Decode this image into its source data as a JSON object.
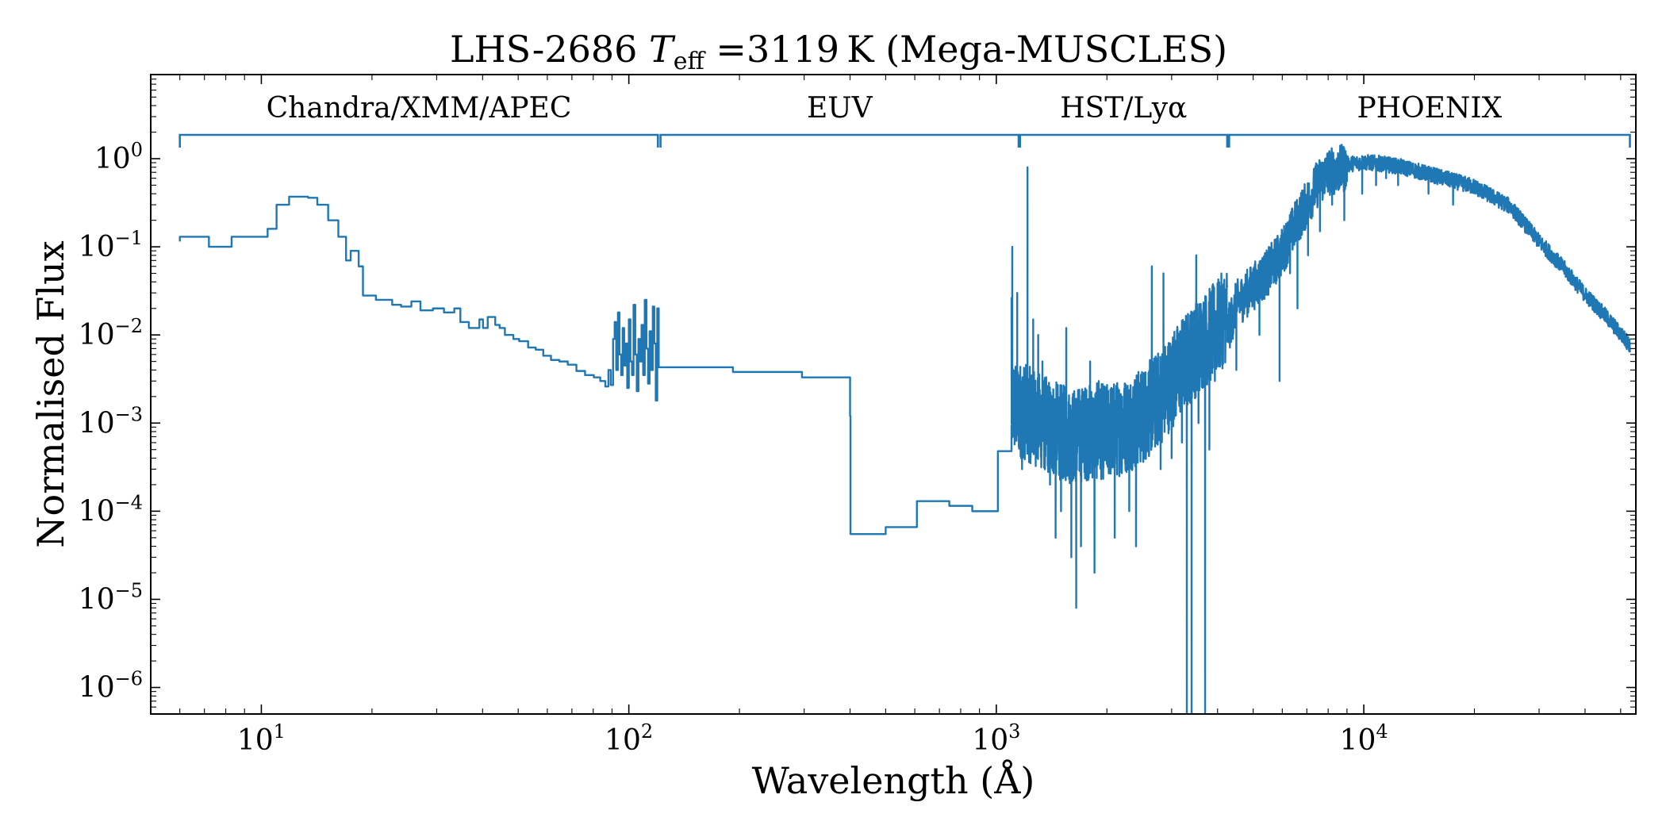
{
  "chart_data": {
    "type": "line",
    "title": {
      "prefix": "LHS-2686 ",
      "t_symbol": "T",
      "t_subscript": "eff",
      "suffix": " =3119 K (Mega-MUSCLES)"
    },
    "xlabel": "Wavelength (Å)",
    "ylabel": "Normalised Flux",
    "x_scale": "log",
    "y_scale": "log",
    "xlim": [
      5,
      55000
    ],
    "ylim": [
      5e-07,
      9
    ],
    "x_major_ticks": [
      {
        "value": 10,
        "base": "10",
        "exp": "1"
      },
      {
        "value": 100,
        "base": "10",
        "exp": "2"
      },
      {
        "value": 1000,
        "base": "10",
        "exp": "3"
      },
      {
        "value": 10000,
        "base": "10",
        "exp": "4"
      }
    ],
    "y_major_ticks": [
      {
        "value": 1,
        "base": "10",
        "exp": "0"
      },
      {
        "value": 0.1,
        "base": "10",
        "exp": "−1"
      },
      {
        "value": 0.01,
        "base": "10",
        "exp": "−2"
      },
      {
        "value": 0.001,
        "base": "10",
        "exp": "−3"
      },
      {
        "value": 0.0001,
        "base": "10",
        "exp": "−4"
      },
      {
        "value": 1e-05,
        "base": "10",
        "exp": "−5"
      },
      {
        "value": 1e-06,
        "base": "10",
        "exp": "−6"
      }
    ],
    "grid": false,
    "line_color": "#1f77b4",
    "regions": [
      {
        "label": "Chandra/XMM/APEC",
        "x_start": 6,
        "x_end": 120
      },
      {
        "label": "EUV",
        "x_start": 122,
        "x_end": 1150
      },
      {
        "label": "HST/Lyα",
        "x_start": 1160,
        "x_end": 4250
      },
      {
        "label": "PHOENIX",
        "x_start": 4300,
        "x_end": 53000
      }
    ],
    "series": [
      {
        "steps_xray": [
          [
            6,
            0.115
          ],
          [
            6,
            0.13
          ],
          [
            7.2,
            0.13
          ],
          [
            7.2,
            0.1
          ],
          [
            8.3,
            0.1
          ],
          [
            8.3,
            0.13
          ],
          [
            10.4,
            0.13
          ],
          [
            10.4,
            0.16
          ],
          [
            11.0,
            0.16
          ],
          [
            11.0,
            0.3
          ],
          [
            11.9,
            0.3
          ],
          [
            11.9,
            0.37
          ],
          [
            13.4,
            0.37
          ],
          [
            13.4,
            0.36
          ],
          [
            14.2,
            0.36
          ],
          [
            14.2,
            0.3
          ],
          [
            15.2,
            0.3
          ],
          [
            15.2,
            0.2
          ],
          [
            16.2,
            0.2
          ],
          [
            16.2,
            0.13
          ],
          [
            17.0,
            0.13
          ],
          [
            17.0,
            0.07
          ],
          [
            17.5,
            0.07
          ],
          [
            17.5,
            0.09
          ],
          [
            18.4,
            0.09
          ],
          [
            18.4,
            0.06
          ],
          [
            18.9,
            0.06
          ],
          [
            18.9,
            0.028
          ],
          [
            20.5,
            0.028
          ],
          [
            20.5,
            0.025
          ],
          [
            22.7,
            0.025
          ],
          [
            22.7,
            0.022
          ],
          [
            24.0,
            0.022
          ],
          [
            24.0,
            0.021
          ],
          [
            25.6,
            0.021
          ],
          [
            25.6,
            0.024
          ],
          [
            27.1,
            0.024
          ],
          [
            27.1,
            0.019
          ],
          [
            29.3,
            0.019
          ],
          [
            29.3,
            0.02
          ],
          [
            31.4,
            0.02
          ],
          [
            31.4,
            0.018
          ],
          [
            33.5,
            0.018
          ],
          [
            33.5,
            0.02
          ],
          [
            34.8,
            0.02
          ],
          [
            34.8,
            0.014
          ],
          [
            36.7,
            0.014
          ],
          [
            36.7,
            0.012
          ],
          [
            39.2,
            0.012
          ],
          [
            39.2,
            0.015
          ],
          [
            40.1,
            0.015
          ],
          [
            40.1,
            0.012
          ],
          [
            41.3,
            0.012
          ],
          [
            41.3,
            0.016
          ],
          [
            43.3,
            0.016
          ],
          [
            43.3,
            0.013
          ],
          [
            44.5,
            0.013
          ],
          [
            44.5,
            0.012
          ],
          [
            46.0,
            0.012
          ],
          [
            46.0,
            0.01
          ],
          [
            48.5,
            0.01
          ],
          [
            48.5,
            0.009
          ],
          [
            50.3,
            0.009
          ],
          [
            50.3,
            0.0085
          ],
          [
            53.2,
            0.0085
          ],
          [
            53.2,
            0.0072
          ],
          [
            55.8,
            0.0072
          ],
          [
            55.8,
            0.0068
          ],
          [
            58.5,
            0.0068
          ],
          [
            58.5,
            0.0058
          ],
          [
            61.4,
            0.0058
          ],
          [
            61.4,
            0.0052
          ],
          [
            64.7,
            0.0052
          ],
          [
            64.7,
            0.005
          ],
          [
            68.2,
            0.005
          ],
          [
            68.2,
            0.0046
          ],
          [
            72.0,
            0.0046
          ],
          [
            72.0,
            0.0039
          ],
          [
            76.0,
            0.0039
          ],
          [
            76.0,
            0.0035
          ],
          [
            80.3,
            0.0035
          ],
          [
            80.3,
            0.0033
          ],
          [
            83.6,
            0.0033
          ],
          [
            83.6,
            0.003
          ],
          [
            86.3,
            0.003
          ],
          [
            86.3,
            0.0026
          ],
          [
            88.0,
            0.0026
          ],
          [
            88.0,
            0.004
          ],
          [
            89.3,
            0.004
          ],
          [
            89.3,
            0.0027
          ],
          [
            90.6,
            0.0027
          ],
          [
            90.6,
            0.009
          ],
          [
            91.5,
            0.009
          ],
          [
            91.5,
            0.014
          ],
          [
            92.4,
            0.014
          ],
          [
            92.4,
            0.004
          ],
          [
            93.4,
            0.004
          ],
          [
            93.4,
            0.018
          ],
          [
            94.3,
            0.018
          ],
          [
            94.3,
            0.006
          ],
          [
            95.3,
            0.006
          ],
          [
            95.3,
            0.0035
          ],
          [
            96.2,
            0.0035
          ],
          [
            96.2,
            0.012
          ],
          [
            97.1,
            0.012
          ],
          [
            97.1,
            0.0045
          ],
          [
            98.0,
            0.0045
          ],
          [
            98.0,
            0.008
          ],
          [
            99.0,
            0.008
          ],
          [
            99.0,
            0.0025
          ],
          [
            100.0,
            0.0025
          ],
          [
            100.0,
            0.015
          ],
          [
            101.0,
            0.015
          ],
          [
            101.0,
            0.005
          ],
          [
            102.0,
            0.005
          ],
          [
            102.0,
            0.0035
          ],
          [
            103.0,
            0.0035
          ],
          [
            103.0,
            0.022
          ],
          [
            104.1,
            0.022
          ],
          [
            104.1,
            0.006
          ],
          [
            105.1,
            0.006
          ],
          [
            105.1,
            0.0023
          ],
          [
            106.2,
            0.0023
          ],
          [
            106.2,
            0.009
          ],
          [
            107.2,
            0.009
          ],
          [
            107.2,
            0.005
          ],
          [
            108.3,
            0.005
          ],
          [
            108.3,
            0.013
          ],
          [
            109.4,
            0.013
          ],
          [
            109.4,
            0.0035
          ],
          [
            110.5,
            0.0035
          ],
          [
            110.5,
            0.025
          ],
          [
            111.7,
            0.025
          ],
          [
            111.7,
            0.007
          ],
          [
            112.8,
            0.007
          ],
          [
            112.8,
            0.0028
          ],
          [
            113.9,
            0.0028
          ],
          [
            113.9,
            0.011
          ],
          [
            115.1,
            0.011
          ],
          [
            115.1,
            0.004
          ],
          [
            116.2,
            0.004
          ],
          [
            116.2,
            0.021
          ],
          [
            117.3,
            0.021
          ],
          [
            117.3,
            0.008
          ],
          [
            118.4,
            0.008
          ],
          [
            118.4,
            0.0018
          ],
          [
            119.5,
            0.0018
          ],
          [
            119.5,
            0.02
          ],
          [
            120.6,
            0.02
          ],
          [
            120.6,
            0.0042
          ]
        ],
        "steps_euv": [
          [
            120.6,
            0.0043
          ],
          [
            192,
            0.0043
          ],
          [
            192,
            0.0038
          ],
          [
            296,
            0.0038
          ],
          [
            296,
            0.0033
          ],
          [
            400,
            0.0033
          ],
          [
            400,
            0.0012
          ],
          [
            401,
            0.0012
          ],
          [
            401,
            5.5e-05
          ],
          [
            500,
            5.5e-05
          ],
          [
            500,
            6.6e-05
          ],
          [
            608,
            6.6e-05
          ],
          [
            608,
            0.00013
          ],
          [
            745,
            0.00013
          ],
          [
            745,
            0.000115
          ],
          [
            860,
            0.000115
          ],
          [
            860,
            0.0001
          ],
          [
            1010,
            0.0001
          ],
          [
            1010,
            0.00048
          ],
          [
            1100,
            0.00048
          ],
          [
            1100,
            0.00095
          ]
        ],
        "uv_anchors": [
          [
            1100,
            0.0016
          ],
          [
            1250,
            0.0012
          ],
          [
            1400,
            0.0009
          ],
          [
            1600,
            0.0007
          ],
          [
            1800,
            0.0008
          ],
          [
            2000,
            0.0008
          ],
          [
            2200,
            0.0009
          ],
          [
            2500,
            0.0012
          ],
          [
            2800,
            0.002
          ],
          [
            3200,
            0.0045
          ],
          [
            3600,
            0.008
          ],
          [
            4000,
            0.012
          ],
          [
            4250,
            0.018
          ]
        ],
        "uv_spikes": [
          [
            1105,
            0.1
          ],
          [
            1140,
            0.03
          ],
          [
            1175,
            0.0003
          ],
          [
            1216,
            0.8
          ],
          [
            1240,
            0.0004
          ],
          [
            1260,
            0.015
          ],
          [
            1300,
            0.01
          ],
          [
            1335,
            0.005
          ],
          [
            1400,
            0.0002
          ],
          [
            1450,
            5e-05
          ],
          [
            1500,
            0.0001
          ],
          [
            1550,
            0.012
          ],
          [
            1600,
            3e-05
          ],
          [
            1650,
            8e-06
          ],
          [
            1700,
            4e-05
          ],
          [
            1800,
            0.005
          ],
          [
            1850,
            2e-05
          ],
          [
            1900,
            0.003
          ],
          [
            2100,
            5e-05
          ],
          [
            2200,
            0.002
          ],
          [
            2300,
            0.0001
          ],
          [
            2400,
            4e-05
          ],
          [
            2550,
            0.002
          ],
          [
            2650,
            0.06
          ],
          [
            2800,
            0.0003
          ],
          [
            2850,
            0.05
          ],
          [
            3000,
            0.0004
          ],
          [
            3200,
            0.0006
          ],
          [
            3300,
            3e-07
          ],
          [
            3400,
            3e-07
          ],
          [
            3500,
            0.08
          ],
          [
            3550,
            0.001
          ],
          [
            3700,
            3e-07
          ],
          [
            3800,
            0.0005
          ],
          [
            3934,
            0.003
          ],
          [
            4100,
            0.008
          ]
        ],
        "ir_anchors": [
          [
            4250,
            0.012
          ],
          [
            4500,
            0.025
          ],
          [
            5000,
            0.04
          ],
          [
            5500,
            0.06
          ],
          [
            6000,
            0.1
          ],
          [
            6500,
            0.2
          ],
          [
            7000,
            0.35
          ],
          [
            7500,
            0.6
          ],
          [
            8000,
            0.8
          ],
          [
            9000,
            0.9
          ],
          [
            10000,
            0.95
          ],
          [
            11000,
            0.92
          ],
          [
            12500,
            0.85
          ],
          [
            15000,
            0.7
          ],
          [
            20000,
            0.5
          ],
          [
            25000,
            0.3
          ],
          [
            30000,
            0.12
          ],
          [
            35000,
            0.06
          ],
          [
            40000,
            0.03
          ],
          [
            45000,
            0.018
          ],
          [
            53000,
            0.008
          ]
        ],
        "ir_spikes": [
          [
            4500,
            0.004
          ],
          [
            5200,
            0.01
          ],
          [
            5900,
            0.003
          ],
          [
            6300,
            0.05
          ],
          [
            6600,
            0.02
          ],
          [
            7050,
            0.08
          ],
          [
            7600,
            0.15
          ],
          [
            8200,
            0.3
          ],
          [
            8850,
            0.2
          ],
          [
            9900,
            0.4
          ],
          [
            10800,
            0.5
          ],
          [
            11500,
            0.6
          ],
          [
            12400,
            0.5
          ],
          [
            15000,
            0.4
          ],
          [
            17500,
            0.3
          ]
        ]
      }
    ]
  }
}
